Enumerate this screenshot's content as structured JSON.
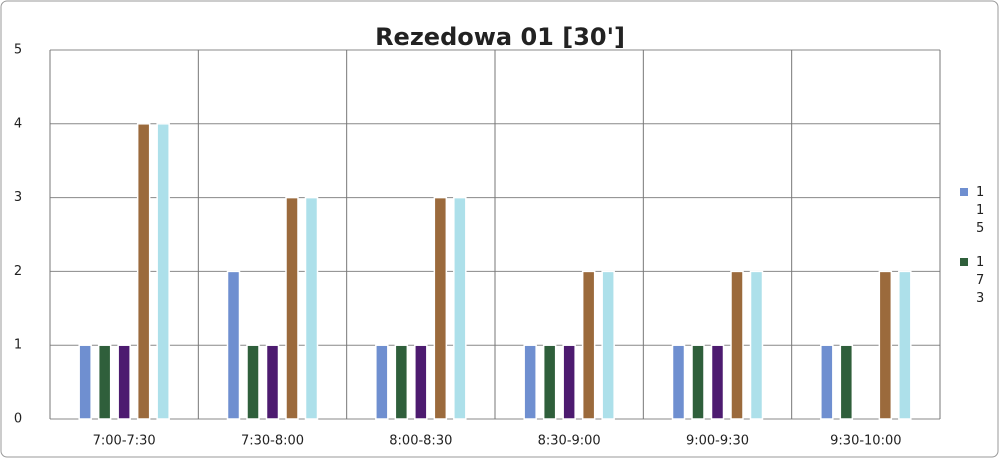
{
  "chart_data": {
    "type": "bar",
    "title": "Rezedowa 01 [30']",
    "categories": [
      "7:00-7:30",
      "7:30-8:00",
      "8:00-8:30",
      "8:30-9:00",
      "9:00-9:30",
      "9:30-10:00"
    ],
    "series": [
      {
        "name": "115",
        "color": "#6f8fd0",
        "values": [
          1,
          2,
          1,
          1,
          1,
          1
        ]
      },
      {
        "name": "173",
        "color": "#2f5f3b",
        "values": [
          1,
          1,
          1,
          1,
          1,
          1
        ]
      },
      {
        "color": "#4d1b70",
        "values": [
          1,
          1,
          1,
          1,
          1,
          0
        ]
      },
      {
        "color": "#9b6a3c",
        "values": [
          4,
          3,
          3,
          2,
          2,
          2
        ]
      },
      {
        "color": "#ade0ea",
        "values": [
          4,
          3,
          3,
          2,
          2,
          2
        ]
      }
    ],
    "ylim": [
      0,
      5
    ],
    "yticks": [
      0,
      1,
      2,
      3,
      4,
      5
    ],
    "grid": true,
    "legend": "right"
  }
}
